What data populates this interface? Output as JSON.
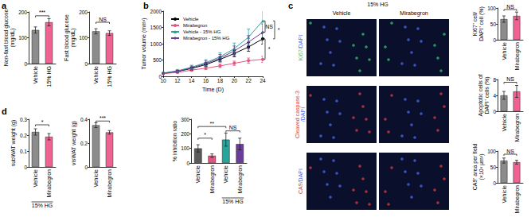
{
  "panel_labels": [
    "a",
    "b",
    "c",
    "d"
  ],
  "images": {
    "title": "15% HG",
    "columns": [
      "Vehicle",
      "Mirabegron"
    ],
    "rows": [
      {
        "parts": [
          {
            "text": "Ki67",
            "color": "#35c46a"
          },
          {
            "text": "/DAPI",
            "color": "#4a6cf0"
          }
        ]
      },
      {
        "parts": [
          {
            "text": "Cleaved caspase-3",
            "color": "#e23b3b"
          },
          {
            "text": "/DAPI",
            "color": "#4a6cf0"
          }
        ]
      },
      {
        "parts": [
          {
            "text": "CA9",
            "color": "#e23b3b"
          },
          {
            "text": "/DAPI",
            "color": "#4a6cf0"
          }
        ]
      }
    ]
  },
  "chart_data": [
    {
      "type": "bar",
      "y_label": "Non-fast blood glucose\n(mg/dL)",
      "categories": [
        "Vehicle",
        "15% HG"
      ],
      "values": [
        130,
        160
      ],
      "errors": [
        12,
        14
      ],
      "colors": [
        "#8c8c8c",
        "#f06292"
      ],
      "ylim": [
        0,
        200
      ],
      "yticks": [
        0,
        100,
        200
      ],
      "annotations": [
        {
          "text": "***",
          "from": 0,
          "to": 1,
          "y": 185
        }
      ]
    },
    {
      "type": "bar",
      "y_label": "Fast blood glucose\n(mg/dL)",
      "categories": [
        "Vehicle",
        "15% HG"
      ],
      "values": [
        125,
        118
      ],
      "errors": [
        10,
        9
      ],
      "colors": [
        "#8c8c8c",
        "#f06292"
      ],
      "ylim": [
        0,
        200
      ],
      "yticks": [
        0,
        100,
        200
      ],
      "annotations": [
        {
          "text": "NS",
          "from": 0,
          "to": 1,
          "y": 160
        }
      ]
    },
    {
      "type": "line",
      "x_label": "Time (D)",
      "y_label": "Tumor volume (mm³)",
      "x": [
        10,
        12,
        14,
        16,
        18,
        20,
        22,
        24
      ],
      "series": [
        {
          "name": "Vehicle",
          "color": "#000000",
          "marker": "circle",
          "values": [
            90,
            150,
            240,
            360,
            520,
            700,
            900,
            1150
          ],
          "errors": [
            20,
            30,
            45,
            60,
            80,
            100,
            130,
            160
          ]
        },
        {
          "name": "Mirabegron",
          "color": "#e75480",
          "marker": "circle",
          "values": [
            80,
            120,
            190,
            250,
            320,
            400,
            480,
            520
          ],
          "errors": [
            15,
            25,
            35,
            45,
            55,
            65,
            80,
            90
          ]
        },
        {
          "name": "Vehicle - 15% HG",
          "color": "#26a69a",
          "marker": "triangle",
          "values": [
            100,
            170,
            280,
            420,
            600,
            850,
            1200,
            1700
          ],
          "errors": [
            25,
            40,
            60,
            90,
            120,
            170,
            250,
            350
          ]
        },
        {
          "name": "Mirabegron - 15% HG",
          "color": "#6a3d9a",
          "marker": "diamond",
          "values": [
            90,
            150,
            260,
            390,
            560,
            780,
            1050,
            1350
          ],
          "errors": [
            20,
            35,
            55,
            80,
            110,
            150,
            200,
            260
          ]
        }
      ],
      "xlim": [
        10,
        24
      ],
      "xticks": [
        10,
        12,
        14,
        16,
        18,
        20,
        22,
        24
      ],
      "ylim": [
        0,
        2000
      ],
      "yticks": [
        0,
        500,
        1000,
        1500,
        2000
      ],
      "legend": "top-left",
      "annotations": [
        {
          "text": "NS",
          "y1": 1700,
          "y2": 1350
        },
        {
          "text": "*",
          "y1": 1700,
          "y2": 1150
        },
        {
          "text": "*",
          "y1": 1150,
          "y2": 520
        }
      ]
    },
    {
      "type": "bar",
      "y_label": "% inhibition ratio",
      "categories": [
        "Vehicle",
        "Mirabegron",
        "Vehicle",
        "Mirabegron"
      ],
      "values": [
        100,
        50,
        160,
        130
      ],
      "errors": [
        25,
        12,
        45,
        40
      ],
      "colors": [
        "#5a5a5a",
        "#e75480",
        "#26a69a",
        "#6a3d9a"
      ],
      "ylim": [
        0,
        300
      ],
      "yticks": [
        0,
        100,
        200,
        300
      ],
      "group_label": {
        "text": "15% HG",
        "from": 2,
        "to": 3
      },
      "annotations": [
        {
          "text": "*",
          "from": 0,
          "to": 1,
          "y": 170
        },
        {
          "text": "**",
          "from": 0,
          "to": 2,
          "y": 250
        },
        {
          "text": "NS",
          "from": 2,
          "to": 3,
          "y": 220
        }
      ]
    },
    {
      "type": "bar",
      "y_label": "Ki67⁺ cell/\nDAPI⁺ cell (%)",
      "categories": [
        "Vehicle",
        "Mirabegron"
      ],
      "values": [
        65,
        75
      ],
      "errors": [
        10,
        12
      ],
      "colors": [
        "#8c8c8c",
        "#f06292"
      ],
      "ylim": [
        0,
        100
      ],
      "yticks": [
        0,
        50,
        100
      ],
      "annotations": [
        {
          "text": "NS",
          "from": 0,
          "to": 1,
          "y": 95
        }
      ]
    },
    {
      "type": "bar",
      "y_label": "Apoptotic cells of\nDAPI⁺ cells (%)",
      "categories": [
        "Vehicle",
        "Mirabegron"
      ],
      "values": [
        4,
        5
      ],
      "errors": [
        1,
        1.5
      ],
      "colors": [
        "#8c8c8c",
        "#f06292"
      ],
      "ylim": [
        0,
        8
      ],
      "yticks": [
        0,
        4,
        8
      ],
      "annotations": [
        {
          "text": "NS",
          "from": 0,
          "to": 1,
          "y": 7.3
        }
      ]
    },
    {
      "type": "bar",
      "y_label": "CA9⁺ area per field\n(×10³ μm²)",
      "categories": [
        "Vehicle",
        "Mirabegron"
      ],
      "values": [
        70,
        65
      ],
      "errors": [
        8,
        6
      ],
      "colors": [
        "#8c8c8c",
        "#f06292"
      ],
      "ylim": [
        0,
        100
      ],
      "yticks": [
        0,
        50,
        100
      ],
      "annotations": [
        {
          "text": "NS",
          "from": 0,
          "to": 1,
          "y": 90
        }
      ]
    },
    {
      "type": "bar",
      "y_label": "subWAT weight (g)",
      "categories": [
        "Vehicle",
        "Mirabegron"
      ],
      "values": [
        0.22,
        0.19
      ],
      "errors": [
        0.02,
        0.02
      ],
      "colors": [
        "#8c8c8c",
        "#f06292"
      ],
      "ylim": [
        0,
        0.3
      ],
      "yticks": [
        0,
        0.1,
        0.2,
        0.3
      ],
      "group_label": {
        "text": "15% HG",
        "from": 0,
        "to": 1
      },
      "annotations": [
        {
          "text": "*",
          "from": 0,
          "to": 1,
          "y": 0.265
        }
      ]
    },
    {
      "type": "bar",
      "y_label": "visWAT weight (g)",
      "categories": [
        "Vehicle",
        "Mirabegron"
      ],
      "values": [
        0.35,
        0.29
      ],
      "errors": [
        0.02,
        0.015
      ],
      "colors": [
        "#8c8c8c",
        "#f06292"
      ],
      "ylim": [
        0,
        0.4
      ],
      "yticks": [
        0,
        0.2,
        0.4
      ],
      "annotations": [
        {
          "text": "***",
          "from": 0,
          "to": 1,
          "y": 0.385
        }
      ]
    }
  ]
}
